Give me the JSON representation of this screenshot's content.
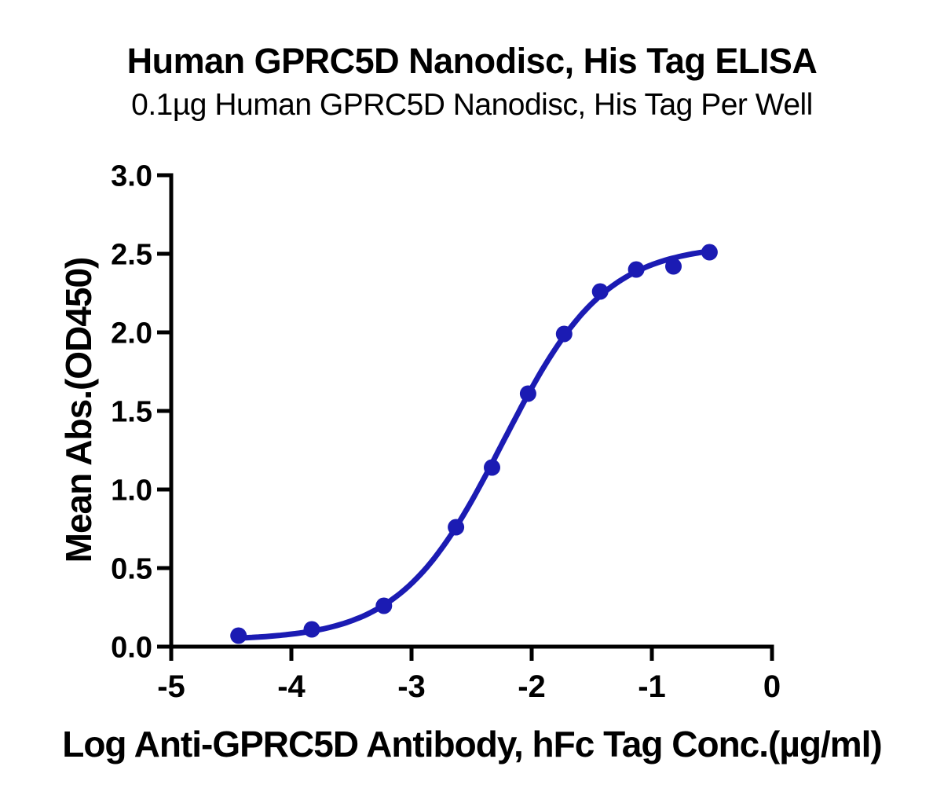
{
  "chart_data": {
    "type": "scatter",
    "title": "Human GPRC5D Nanodisc, His Tag ELISA",
    "subtitle": "0.1µg Human GPRC5D Nanodisc, His Tag Per Well",
    "xlabel": "Log Anti-GPRC5D Antibody, hFc Tag Conc.(µg/ml)",
    "ylabel": "Mean Abs.(OD450)",
    "xlim": [
      -5,
      0
    ],
    "ylim": [
      0,
      3
    ],
    "grid": false,
    "legend_position": "none",
    "axis_color": "#000000",
    "text_color": "#000000",
    "x_ticks": [
      {
        "value": -5,
        "label": "-5"
      },
      {
        "value": -4,
        "label": "-4"
      },
      {
        "value": -3,
        "label": "-3"
      },
      {
        "value": -2,
        "label": "-2"
      },
      {
        "value": -1,
        "label": "-1"
      },
      {
        "value": 0,
        "label": "0"
      }
    ],
    "y_ticks": [
      {
        "value": 0.0,
        "label": "0.0"
      },
      {
        "value": 0.5,
        "label": "0.5"
      },
      {
        "value": 1.0,
        "label": "1.0"
      },
      {
        "value": 1.5,
        "label": "1.5"
      },
      {
        "value": 2.0,
        "label": "2.0"
      },
      {
        "value": 2.5,
        "label": "2.5"
      },
      {
        "value": 3.0,
        "label": "3.0"
      }
    ],
    "series": [
      {
        "marker": "circle",
        "color": "#1b1bb3",
        "points": [
          {
            "x": -4.44,
            "y": 0.07
          },
          {
            "x": -3.83,
            "y": 0.11
          },
          {
            "x": -3.23,
            "y": 0.26
          },
          {
            "x": -2.63,
            "y": 0.76
          },
          {
            "x": -2.33,
            "y": 1.14
          },
          {
            "x": -2.03,
            "y": 1.61
          },
          {
            "x": -1.73,
            "y": 1.99
          },
          {
            "x": -1.43,
            "y": 2.26
          },
          {
            "x": -1.13,
            "y": 2.4
          },
          {
            "x": -0.82,
            "y": 2.42
          },
          {
            "x": -0.52,
            "y": 2.51
          }
        ],
        "fit_curve": {
          "model": "4PL",
          "bottom": 0.04,
          "top": 2.56,
          "logEC50": -2.24,
          "hillslope": 1.02,
          "x_start": -4.44,
          "x_end": -0.52
        }
      }
    ]
  }
}
